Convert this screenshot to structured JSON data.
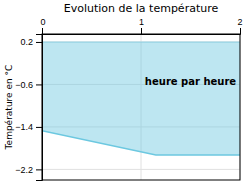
{
  "chart_data": {
    "type": "area",
    "title": "Evolution de la température",
    "y_label": "Température en °C",
    "x": [
      0,
      1.15,
      2.0
    ],
    "values": [
      -1.47,
      -1.93,
      -1.93
    ],
    "baseline": 0.2,
    "color": "#6cc8e0",
    "xlim": [
      0,
      2
    ],
    "ylim": [
      -2.4,
      0.35
    ],
    "xticks": [
      0,
      1,
      2
    ],
    "yticks": [
      {
        "value": 0.2,
        "label": "0.2"
      },
      {
        "value": -0.6,
        "label": "−0.6"
      },
      {
        "value": -1.4,
        "label": "−1.4"
      },
      {
        "value": -2.2,
        "label": "−2.2"
      }
    ],
    "grid": true,
    "annotations": [
      {
        "text": "heure par heure",
        "x": 1.5,
        "y": -0.55
      }
    ]
  }
}
